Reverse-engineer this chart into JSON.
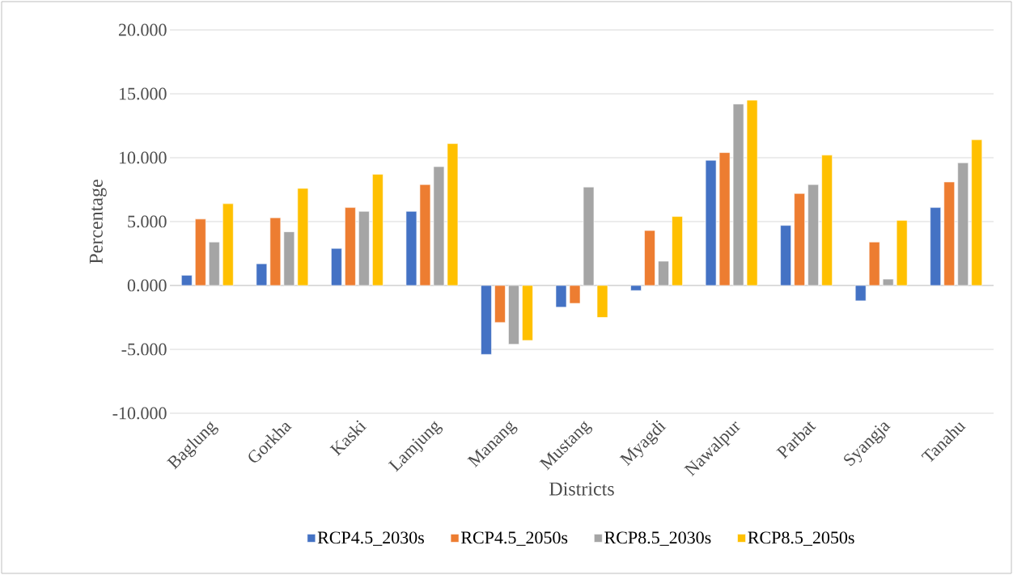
{
  "chart_data": {
    "type": "bar",
    "xlabel": "Districts",
    "ylabel": "Percentage",
    "categories": [
      "Baglung",
      "Gorkha",
      "Kaski",
      "Lamjung",
      "Manang",
      "Mustang",
      "Myagdi",
      "Nawalpur",
      "Parbat",
      "Syangja",
      "Tanahu"
    ],
    "series": [
      {
        "name": "RCP4.5_2030s",
        "color": "#4472c4",
        "values": [
          0.8,
          1.7,
          2.9,
          5.8,
          -5.4,
          -1.7,
          -0.4,
          9.8,
          4.7,
          -1.2,
          6.1
        ]
      },
      {
        "name": "RCP4.5_2050s",
        "color": "#ed7d31",
        "values": [
          5.2,
          5.3,
          6.1,
          7.9,
          -2.9,
          -1.4,
          4.3,
          10.4,
          7.2,
          3.4,
          8.1
        ]
      },
      {
        "name": "RCP8.5_2030s",
        "color": "#a5a5a5",
        "values": [
          3.4,
          4.2,
          5.8,
          9.3,
          -4.6,
          7.7,
          1.9,
          14.2,
          7.9,
          0.5,
          9.6
        ]
      },
      {
        "name": "RCP8.5_2050s",
        "color": "#ffc000",
        "values": [
          6.4,
          7.6,
          8.7,
          11.1,
          -4.3,
          -2.5,
          5.4,
          14.5,
          10.2,
          5.1,
          11.4
        ]
      }
    ],
    "ylim": [
      -10,
      20
    ],
    "yticks": [
      {
        "value": -10,
        "label": "-10.000"
      },
      {
        "value": -5,
        "label": "-5.000"
      },
      {
        "value": 0,
        "label": "0.000"
      },
      {
        "value": 5,
        "label": "5.000"
      },
      {
        "value": 10,
        "label": "10.000"
      },
      {
        "value": 15,
        "label": "15.000"
      },
      {
        "value": 20,
        "label": "20.000"
      }
    ],
    "grid": "y",
    "legend": "bottom"
  }
}
